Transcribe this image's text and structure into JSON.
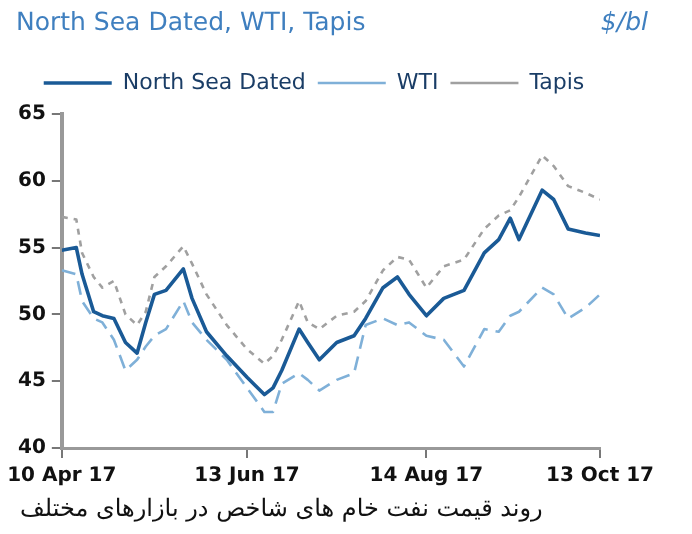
{
  "chart_data": {
    "type": "line",
    "title": "North Sea Dated, WTI, Tapis",
    "ylabel": "$/bl",
    "annotations": [
      "روند قیمت نفت خام های شاخص در بازارهای مختلف"
    ],
    "x": [
      "2017-04-10",
      "2017-04-15",
      "2017-04-17",
      "2017-04-21",
      "2017-04-24",
      "2017-04-28",
      "2017-05-02",
      "2017-05-06",
      "2017-05-09",
      "2017-05-12",
      "2017-05-16",
      "2017-05-22",
      "2017-05-25",
      "2017-05-30",
      "2017-06-06",
      "2017-06-13",
      "2017-06-19",
      "2017-06-22",
      "2017-06-25",
      "2017-07-01",
      "2017-07-04",
      "2017-07-08",
      "2017-07-14",
      "2017-07-20",
      "2017-07-24",
      "2017-07-30",
      "2017-08-04",
      "2017-08-08",
      "2017-08-14",
      "2017-08-20",
      "2017-08-27",
      "2017-09-03",
      "2017-09-08",
      "2017-09-12",
      "2017-09-15",
      "2017-09-23",
      "2017-09-27",
      "2017-10-02",
      "2017-10-08",
      "2017-10-13"
    ],
    "series": [
      {
        "name": "North Sea Dated",
        "color": "#1a5a96",
        "line_style": "solid",
        "values": [
          54.8,
          55.0,
          53.0,
          50.2,
          49.9,
          49.7,
          47.9,
          47.1,
          49.4,
          51.5,
          51.8,
          53.4,
          51.2,
          48.7,
          46.9,
          45.3,
          44.0,
          44.5,
          45.8,
          48.9,
          47.9,
          46.6,
          47.9,
          48.4,
          49.7,
          52.0,
          52.8,
          51.5,
          49.9,
          51.2,
          51.8,
          54.6,
          55.6,
          57.2,
          55.6,
          59.3,
          58.6,
          56.4,
          56.1,
          55.9
        ]
      },
      {
        "name": "WTI",
        "color": "#7fb0d8",
        "line_style": "dashed",
        "values": [
          53.3,
          53.0,
          51.0,
          49.7,
          49.4,
          48.1,
          45.8,
          46.6,
          47.6,
          48.4,
          48.9,
          51.0,
          49.4,
          48.1,
          46.6,
          44.5,
          42.7,
          42.7,
          44.8,
          45.6,
          45.1,
          44.3,
          45.1,
          45.6,
          49.2,
          49.7,
          49.2,
          49.4,
          48.4,
          48.1,
          46.1,
          48.9,
          48.7,
          49.9,
          50.2,
          52.0,
          51.5,
          49.7,
          50.5,
          51.5
        ]
      },
      {
        "name": "Tapis",
        "color": "#a0a0a0",
        "line_style": "dotted",
        "values": [
          57.3,
          57.1,
          54.6,
          52.8,
          52.0,
          52.5,
          50.0,
          49.2,
          50.2,
          52.8,
          53.6,
          55.1,
          53.8,
          51.5,
          49.2,
          47.4,
          46.3,
          46.9,
          48.1,
          51.0,
          49.4,
          48.9,
          49.9,
          50.2,
          51.0,
          53.3,
          54.3,
          54.1,
          52.0,
          53.6,
          54.1,
          56.4,
          57.4,
          57.8,
          58.8,
          61.9,
          61.1,
          59.6,
          59.1,
          58.6
        ]
      }
    ],
    "xlim": [
      "2017-04-10",
      "2017-10-13"
    ],
    "xticks": [
      {
        "value": "2017-04-10",
        "label": "10 Apr 17"
      },
      {
        "value": "2017-06-13",
        "label": "13 Jun 17"
      },
      {
        "value": "2017-08-14",
        "label": "14 Aug 17"
      },
      {
        "value": "2017-10-13",
        "label": "13 Oct 17"
      }
    ],
    "ylim": [
      40,
      65
    ],
    "yticks": [
      40,
      45,
      50,
      55,
      60,
      65
    ],
    "grid": false,
    "legend": "top",
    "marker": "none"
  }
}
